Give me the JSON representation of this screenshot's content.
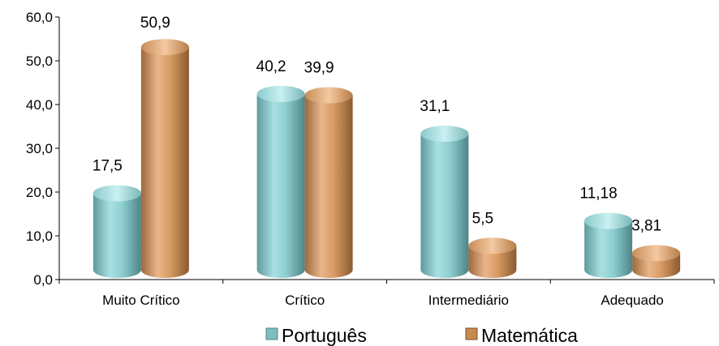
{
  "chart_data": {
    "type": "bar",
    "categories": [
      "Muito Crítico",
      "Crítico",
      "Intermediário",
      "Adequado"
    ],
    "series": [
      {
        "name": "Português",
        "values": [
          17.5,
          40.2,
          31.1,
          11.18
        ],
        "labels": [
          "17,5",
          "40,2",
          "31,1",
          "11,18"
        ],
        "color": "#8fd0d2"
      },
      {
        "name": "Matemática",
        "values": [
          50.9,
          39.9,
          5.5,
          3.81
        ],
        "labels": [
          "50,9",
          "39,9",
          "5,5",
          "3,81"
        ],
        "color": "#d9a068"
      }
    ],
    "ylim": [
      0,
      60
    ],
    "yticks": [
      "0,0",
      "10,0",
      "20,0",
      "30,0",
      "40,0",
      "50,0",
      "60,0"
    ],
    "grid": false,
    "legend": "bottom",
    "bar_style": "3d-cylinder"
  }
}
